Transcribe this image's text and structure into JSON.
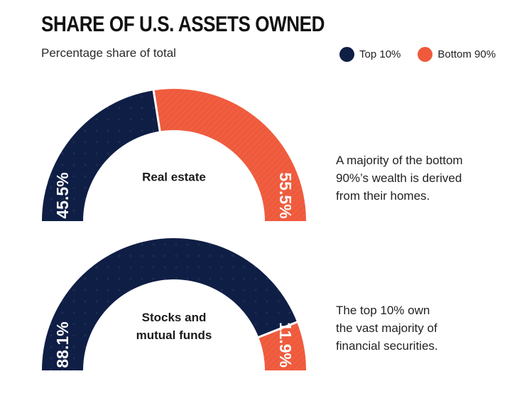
{
  "title": "SHARE OF U.S. ASSETS OWNED",
  "subtitle": "Percentage share of total",
  "colors": {
    "top10": "#0f1e45",
    "bottom90": "#ef5a3c"
  },
  "legend": [
    {
      "label": "Top 10%",
      "color": "#0f1e45"
    },
    {
      "label": "Bottom 90%",
      "color": "#ef5a3c"
    }
  ],
  "chart_data": [
    {
      "type": "pie",
      "label_lines": [
        "Real estate"
      ],
      "categories": [
        "Top 10%",
        "Bottom 90%"
      ],
      "values": [
        45.5,
        55.5
      ],
      "value_labels": [
        "45.5%",
        "55.5%"
      ],
      "note_lines": [
        "A majority of the bottom",
        "90%’s wealth is derived",
        "from their homes."
      ]
    },
    {
      "type": "pie",
      "label_lines": [
        "Stocks and",
        "mutual funds"
      ],
      "categories": [
        "Top 10%",
        "Bottom 90%"
      ],
      "values": [
        88.1,
        11.9
      ],
      "value_labels": [
        "88.1%",
        "11.9%"
      ],
      "note_lines": [
        "The top 10% own",
        "the vast majority of",
        "financial securities."
      ]
    }
  ]
}
